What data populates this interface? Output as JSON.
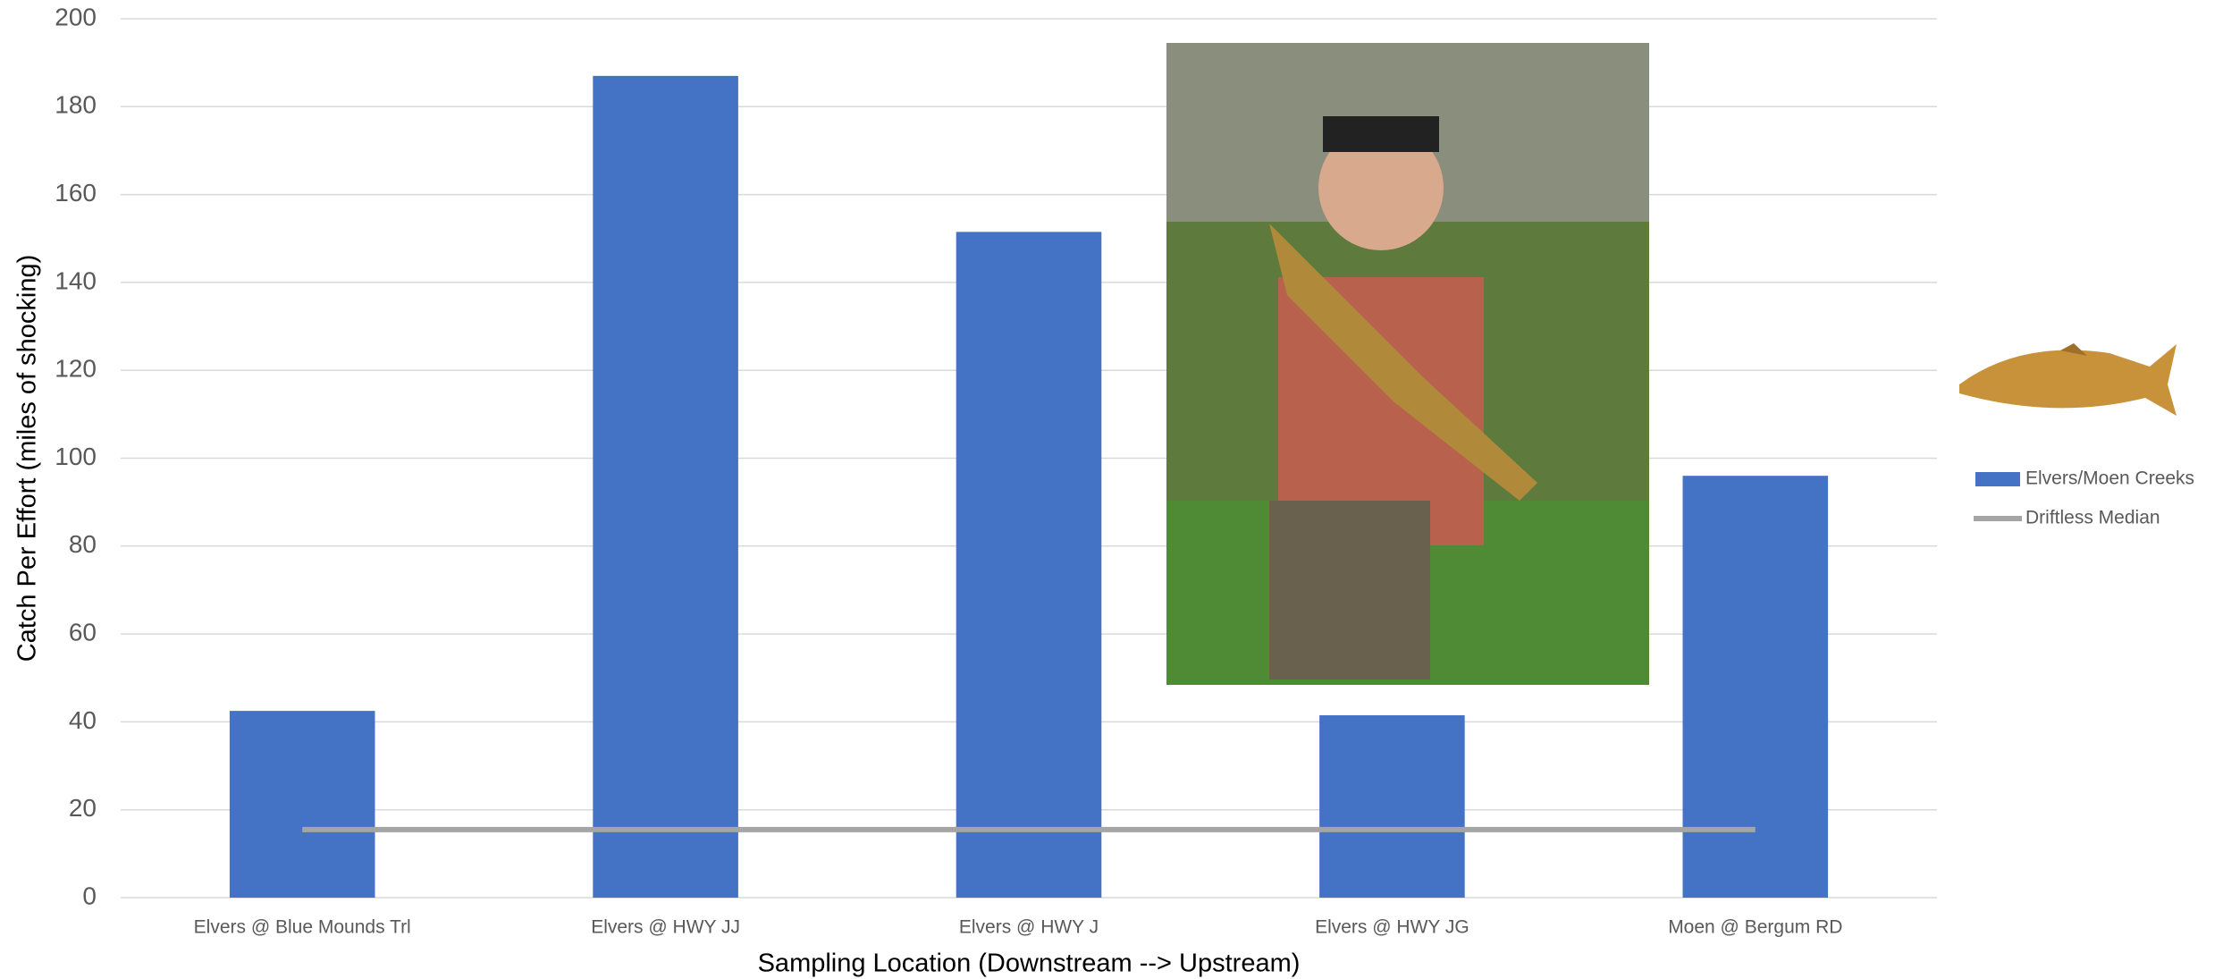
{
  "chart_data": {
    "type": "bar",
    "categories": [
      "Elvers @ Blue Mounds Trl",
      "Elvers @ HWY JJ",
      "Elvers @ HWY J",
      "Elvers @ HWY JG",
      "Moen @ Bergum RD"
    ],
    "series": [
      {
        "name": "Elvers/Moen Creeks",
        "type": "bar",
        "color": "#4472c4",
        "values": [
          42.5,
          187,
          151.5,
          41.5,
          96
        ]
      },
      {
        "name": "Driftless Median",
        "type": "line",
        "color": "#a5a5a5",
        "values": [
          15.5,
          15.5,
          15.5,
          15.5,
          15.5
        ]
      }
    ],
    "x_label": "Sampling Location (Downstream --> Upstream)",
    "y_label": "Catch Per Effort (miles of shocking)",
    "ylim": [
      0,
      200
    ],
    "yticks": [
      0,
      20,
      40,
      60,
      80,
      100,
      120,
      140,
      160,
      180,
      200
    ],
    "grid": true,
    "legend": "right"
  }
}
